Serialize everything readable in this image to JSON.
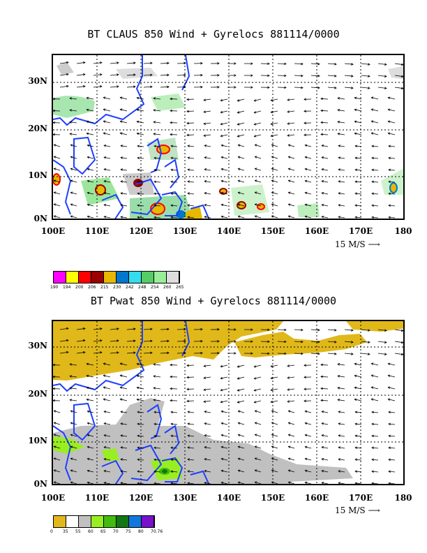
{
  "panel1": {
    "title": "BT CLAUS 850 Wind + Gyrelocs 881114/0000",
    "y_labels": [
      "30N",
      "20N",
      "10N",
      "0N"
    ],
    "x_labels": [
      "100E",
      "110E",
      "120E",
      "130E",
      "140E",
      "150E",
      "160E",
      "170E",
      "180"
    ],
    "scale": "15 M/S",
    "colorbar_colors": [
      "#ff00ff",
      "#ffff00",
      "#ff0000",
      "#990000",
      "#e6b800",
      "#0077cc",
      "#33ddee",
      "#55cc66",
      "#99ee99",
      "#dddddd"
    ],
    "colorbar_labels": [
      "190",
      "194",
      "200",
      "206",
      "215",
      "230",
      "242",
      "248",
      "254",
      "260",
      "265"
    ]
  },
  "panel2": {
    "title": "BT Pwat 850 Wind + Gyrelocs 881114/0000",
    "y_labels": [
      "30N",
      "20N",
      "10N",
      "0N"
    ],
    "x_labels": [
      "100E",
      "110E",
      "120E",
      "130E",
      "140E",
      "150E",
      "160E",
      "170E",
      "180"
    ],
    "scale": "15 M/S",
    "colorbar_colors": [
      "#e0b81a",
      "#ffffff",
      "#c0c0c0",
      "#99ee22",
      "#44bb11",
      "#117711",
      "#1177dd",
      "#7711cc"
    ],
    "colorbar_labels": [
      "0",
      "35",
      "55",
      "60",
      "65",
      "70",
      "75",
      "80",
      "70.76"
    ]
  },
  "colors": {
    "coast": "#1f3fff",
    "grid": "#000000"
  }
}
